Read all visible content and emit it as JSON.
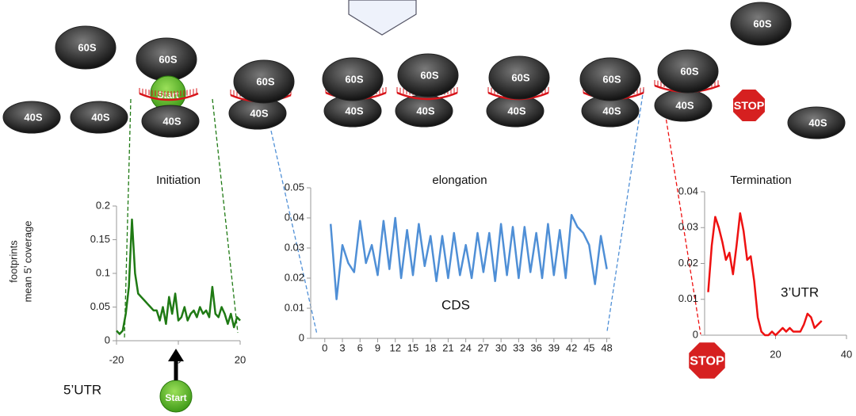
{
  "ribosome_labels": {
    "large": "60S",
    "small": "40S"
  },
  "start_label": "Start",
  "stop_label": "STOP",
  "y_axis_label": [
    "footprints",
    "mean 5’ coverage"
  ],
  "chart_data": [
    {
      "type": "line",
      "title": "Initiation",
      "annotation": "5’UTR",
      "color": "#1f7a14",
      "x": [
        -20,
        -19,
        -18,
        -17,
        -16,
        -15,
        -14,
        -13,
        -12,
        -11,
        -10,
        -9,
        -8,
        -7,
        -6,
        -5,
        -4,
        -3,
        -2,
        -1,
        0,
        1,
        2,
        3,
        4,
        5,
        6,
        7,
        8,
        9,
        10,
        11,
        12,
        13,
        14,
        15,
        16,
        17,
        18,
        19,
        20
      ],
      "values": [
        0.015,
        0.01,
        0.015,
        0.04,
        0.08,
        0.18,
        0.1,
        0.07,
        0.065,
        0.06,
        0.055,
        0.05,
        0.045,
        0.045,
        0.03,
        0.05,
        0.025,
        0.065,
        0.04,
        0.07,
        0.03,
        0.035,
        0.05,
        0.03,
        0.04,
        0.045,
        0.035,
        0.05,
        0.04,
        0.045,
        0.035,
        0.08,
        0.04,
        0.035,
        0.05,
        0.04,
        0.025,
        0.04,
        0.02,
        0.035,
        0.03
      ],
      "xlim": [
        -20,
        20
      ],
      "ylim": [
        0,
        0.2
      ],
      "xticks": [
        -20,
        0,
        20
      ],
      "yticks": [
        0,
        0.05,
        0.1,
        0.15,
        0.2
      ]
    },
    {
      "type": "line",
      "title": "elongation",
      "annotation": "CDS",
      "color": "#4f8fd6",
      "x": [
        1,
        2,
        3,
        4,
        5,
        6,
        7,
        8,
        9,
        10,
        11,
        12,
        13,
        14,
        15,
        16,
        17,
        18,
        19,
        20,
        21,
        22,
        23,
        24,
        25,
        26,
        27,
        28,
        29,
        30,
        31,
        32,
        33,
        34,
        35,
        36,
        37,
        38,
        39,
        40,
        41,
        42,
        43,
        44,
        45,
        46,
        47,
        48
      ],
      "values": [
        0.038,
        0.013,
        0.031,
        0.025,
        0.022,
        0.039,
        0.025,
        0.031,
        0.021,
        0.039,
        0.023,
        0.04,
        0.02,
        0.036,
        0.021,
        0.038,
        0.024,
        0.034,
        0.019,
        0.034,
        0.02,
        0.035,
        0.021,
        0.031,
        0.02,
        0.035,
        0.022,
        0.035,
        0.019,
        0.038,
        0.021,
        0.037,
        0.02,
        0.037,
        0.022,
        0.035,
        0.02,
        0.038,
        0.021,
        0.036,
        0.02,
        0.041,
        0.037,
        0.035,
        0.031,
        0.018,
        0.034,
        0.023
      ],
      "xlim": [
        -2.4,
        48.6
      ],
      "ylim": [
        0,
        0.05
      ],
      "xticks": [
        0,
        3,
        6,
        9,
        12,
        15,
        18,
        21,
        24,
        27,
        30,
        33,
        36,
        39,
        42,
        45,
        48
      ],
      "yticks": [
        0,
        0.01,
        0.02,
        0.03,
        0.04,
        0.05
      ]
    },
    {
      "type": "line",
      "title": "Termination",
      "annotation": "3’UTR",
      "color": "#ee1111",
      "x": [
        1,
        2,
        3,
        4,
        5,
        6,
        7,
        8,
        9,
        10,
        11,
        12,
        13,
        14,
        15,
        16,
        17,
        18,
        19,
        20,
        21,
        22,
        23,
        24,
        25,
        26,
        27,
        28,
        29,
        30,
        31,
        32,
        33
      ],
      "values": [
        0.012,
        0.025,
        0.033,
        0.03,
        0.026,
        0.021,
        0.023,
        0.017,
        0.025,
        0.034,
        0.029,
        0.021,
        0.022,
        0.015,
        0.005,
        0.001,
        0,
        0,
        0.001,
        0,
        0.001,
        0.002,
        0.001,
        0.002,
        0.001,
        0.001,
        0.001,
        0.003,
        0.006,
        0.005,
        0.002,
        0.003,
        0.004
      ],
      "xlim": [
        0,
        40
      ],
      "ylim": [
        0,
        0.04
      ],
      "xticks": [
        20,
        40
      ],
      "yticks": [
        0,
        0.01,
        0.02,
        0.03,
        0.04
      ]
    }
  ]
}
